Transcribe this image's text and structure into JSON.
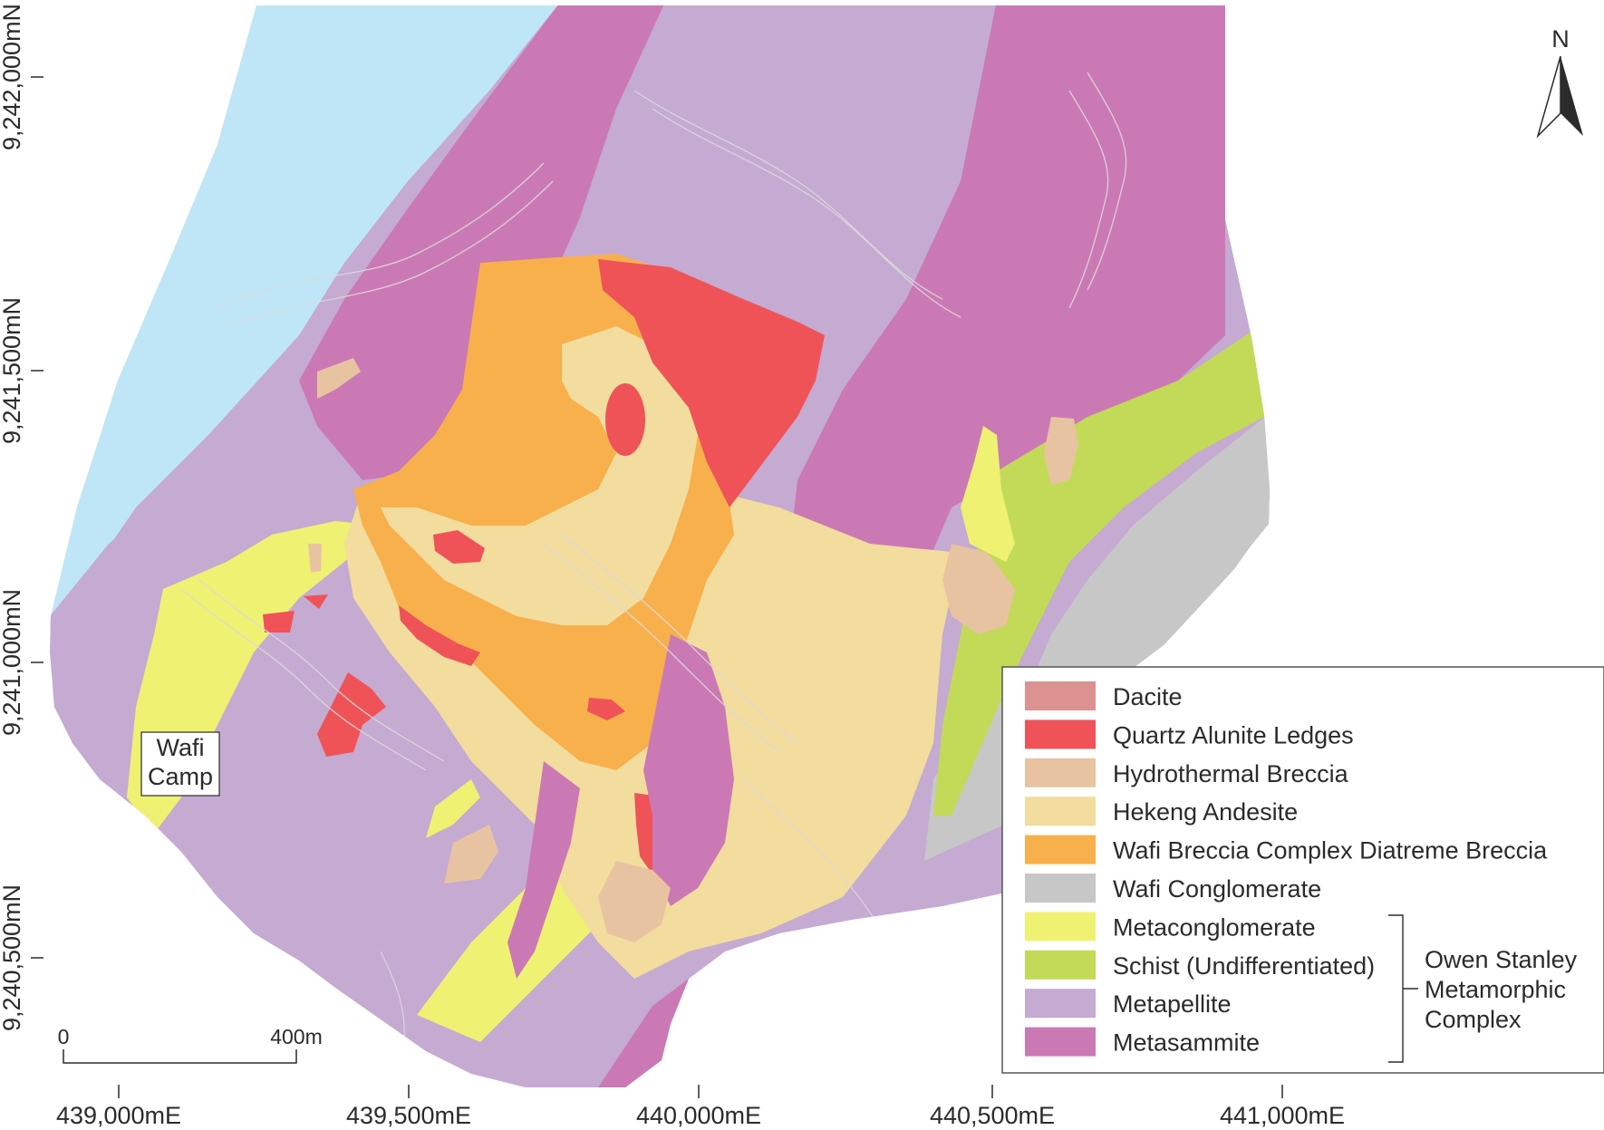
{
  "colors": {
    "dacite": "#dc9290",
    "quartz_alunite": "#ef5358",
    "hydrothermal_breccia": "#e8c3a1",
    "hekeng_andesite": "#f2dc9e",
    "diatreme_breccia": "#f8b04c",
    "wafi_conglomerate": "#c7c7c7",
    "metaconglomerate": "#eff173",
    "schist": "#c2da58",
    "metapellite": "#c5aad2",
    "metasammite": "#cb79b4",
    "water": "#bfe6f7"
  },
  "north_arrow": {
    "label": "N"
  },
  "axes": {
    "x_ticks": [
      "439,000mE",
      "439,500mE",
      "440,000mE",
      "440,500mE",
      "441,000mE"
    ],
    "y_ticks": [
      "9,242,000mN",
      "9,241,500mN",
      "9,241,000mN",
      "9,240,500mN"
    ]
  },
  "scale_bar": {
    "start_label": "0",
    "end_label": "400m"
  },
  "place_label": {
    "line1": "Wafi",
    "line2": "Camp"
  },
  "legend": {
    "items": [
      {
        "label": "Dacite",
        "color_key": "dacite"
      },
      {
        "label": "Quartz Alunite Ledges",
        "color_key": "quartz_alunite"
      },
      {
        "label": "Hydrothermal Breccia",
        "color_key": "hydrothermal_breccia"
      },
      {
        "label": "Hekeng Andesite",
        "color_key": "hekeng_andesite"
      },
      {
        "label": "Wafi Breccia Complex Diatreme Breccia",
        "color_key": "diatreme_breccia"
      },
      {
        "label": "Wafi Conglomerate",
        "color_key": "wafi_conglomerate"
      },
      {
        "label": "Metaconglomerate",
        "color_key": "metaconglomerate"
      },
      {
        "label": "Schist (Undifferentiated)",
        "color_key": "schist"
      },
      {
        "label": "Metapellite",
        "color_key": "metapellite"
      },
      {
        "label": "Metasammite",
        "color_key": "metasammite"
      }
    ],
    "group": {
      "line1": "Owen Stanley",
      "line2": "Metamorphic",
      "line3": "Complex"
    }
  }
}
